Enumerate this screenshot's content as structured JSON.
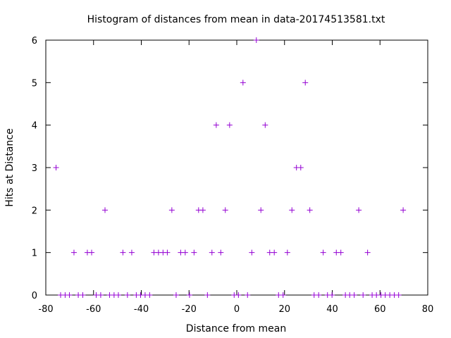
{
  "chart_data": {
    "type": "scatter",
    "title": "Histogram of distances from mean in data-20174513581.txt",
    "xlabel": "Distance from mean",
    "ylabel": "Hits at Distance",
    "xlim": [
      -80,
      80
    ],
    "ylim": [
      0,
      6
    ],
    "xticks": [
      -80,
      -60,
      -40,
      -20,
      0,
      20,
      40,
      60,
      80
    ],
    "yticks": [
      0,
      1,
      2,
      3,
      4,
      5,
      6
    ],
    "xtick_labels": [
      "-80",
      "-60",
      "-40",
      "-20",
      "0",
      "20",
      "40",
      "60",
      "80"
    ],
    "ytick_labels": [
      "0",
      "1",
      "2",
      "3",
      "4",
      "5",
      "6"
    ],
    "grid": false,
    "legend": "none",
    "marker": "plus",
    "marker_color": "#9400d3",
    "series": [
      {
        "points": [
          [
            -75.7,
            3
          ],
          [
            -73.8,
            0
          ],
          [
            -71.9,
            0
          ],
          [
            -70.1,
            0
          ],
          [
            -68.2,
            1
          ],
          [
            -66.4,
            0
          ],
          [
            -64.5,
            0
          ],
          [
            -62.6,
            1
          ],
          [
            -60.8,
            1
          ],
          [
            -58.9,
            0
          ],
          [
            -57.0,
            0
          ],
          [
            -55.2,
            2
          ],
          [
            -53.3,
            0
          ],
          [
            -51.4,
            0
          ],
          [
            -49.6,
            0
          ],
          [
            -47.7,
            1
          ],
          [
            -45.8,
            0
          ],
          [
            -44.0,
            1
          ],
          [
            -42.1,
            0
          ],
          [
            -40.3,
            0
          ],
          [
            -38.4,
            0
          ],
          [
            -36.5,
            0
          ],
          [
            -34.7,
            1
          ],
          [
            -32.8,
            1
          ],
          [
            -30.9,
            1
          ],
          [
            -29.1,
            1
          ],
          [
            -27.2,
            2
          ],
          [
            -25.4,
            0
          ],
          [
            -23.5,
            1
          ],
          [
            -21.6,
            1
          ],
          [
            -19.8,
            0
          ],
          [
            -17.9,
            1
          ],
          [
            -16.0,
            2
          ],
          [
            -14.2,
            2
          ],
          [
            -12.3,
            0
          ],
          [
            -10.4,
            1
          ],
          [
            -8.6,
            4
          ],
          [
            -6.7,
            1
          ],
          [
            -4.8,
            2
          ],
          [
            -3.0,
            4
          ],
          [
            -1.1,
            0
          ],
          [
            0.7,
            0
          ],
          [
            2.6,
            5
          ],
          [
            4.5,
            0
          ],
          [
            6.3,
            1
          ],
          [
            8.2,
            6
          ],
          [
            10.1,
            2
          ],
          [
            11.9,
            4
          ],
          [
            13.8,
            1
          ],
          [
            15.7,
            1
          ],
          [
            17.5,
            0
          ],
          [
            19.4,
            0
          ],
          [
            21.2,
            1
          ],
          [
            23.1,
            2
          ],
          [
            25.0,
            3
          ],
          [
            26.8,
            3
          ],
          [
            28.7,
            5
          ],
          [
            30.6,
            2
          ],
          [
            32.4,
            0
          ],
          [
            34.3,
            0
          ],
          [
            36.2,
            1
          ],
          [
            38.0,
            0
          ],
          [
            39.9,
            0
          ],
          [
            41.7,
            1
          ],
          [
            43.6,
            1
          ],
          [
            45.5,
            0
          ],
          [
            47.3,
            0
          ],
          [
            49.2,
            0
          ],
          [
            51.1,
            2
          ],
          [
            52.9,
            0
          ],
          [
            54.8,
            1
          ],
          [
            56.7,
            0
          ],
          [
            58.5,
            0
          ],
          [
            60.4,
            0
          ],
          [
            62.2,
            0
          ],
          [
            64.1,
            0
          ],
          [
            66.0,
            0
          ],
          [
            67.8,
            0
          ],
          [
            69.7,
            2
          ]
        ]
      }
    ]
  }
}
